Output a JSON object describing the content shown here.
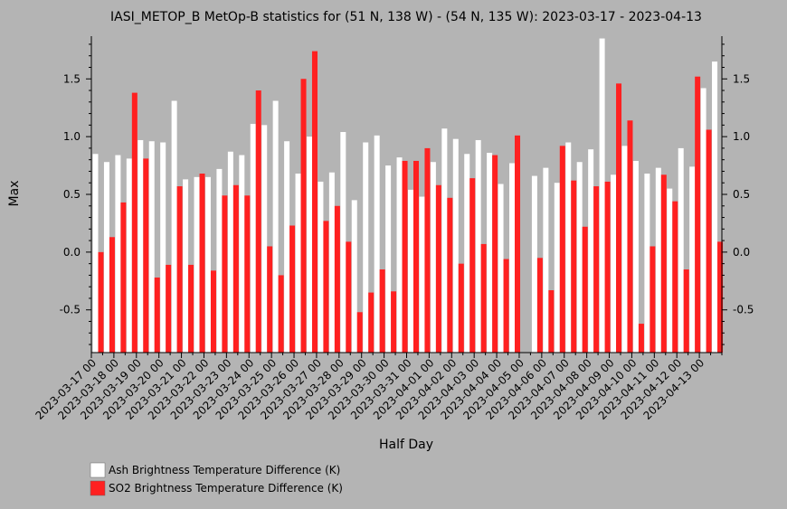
{
  "chart_data": {
    "type": "bar",
    "title": "IASI_METOP_B MetOp-B statistics for (51 N, 138 W) - (54 N, 135 W): 2023-03-17 - 2023-04-13",
    "xlabel": "Half Day",
    "ylabel": "Max",
    "ylim": [
      -0.87,
      1.87
    ],
    "yticks": [
      "1.5",
      "1.0",
      "0.5",
      "0.0",
      "-0.5"
    ],
    "ytick_values": [
      1.5,
      1.0,
      0.5,
      0.0,
      -0.5
    ],
    "xtick_labels": [
      "2023-03-17 00",
      "2023-03-18 00",
      "2023-03-19 00",
      "2023-03-20 00",
      "2023-03-21 00",
      "2023-03-22 00",
      "2023-03-23 00",
      "2023-03-24 00",
      "2023-03-25 00",
      "2023-03-26 00",
      "2023-03-27 00",
      "2023-03-28 00",
      "2023-03-29 00",
      "2023-03-30 00",
      "2023-03-31 00",
      "2023-04-01 00",
      "2023-04-02 00",
      "2023-04-03 00",
      "2023-04-04 00",
      "2023-04-05 00",
      "2023-04-06 00",
      "2023-04-07 00",
      "2023-04-08 00",
      "2023-04-09 00",
      "2023-04-10 00",
      "2023-04-11 00",
      "2023-04-12 00",
      "2023-04-13 00"
    ],
    "grid": false,
    "legend_position": "bottom-left",
    "series": [
      {
        "name": "Ash Brightness Temperature Difference (K)",
        "color": "#ffffff",
        "values": [
          0.85,
          0.78,
          0.84,
          0.81,
          0.97,
          0.96,
          0.95,
          1.31,
          0.63,
          0.65,
          0.65,
          0.72,
          0.87,
          0.84,
          1.11,
          1.1,
          1.31,
          0.96,
          0.68,
          1.0,
          0.61,
          0.69,
          1.04,
          0.45,
          0.95,
          1.01,
          0.75,
          0.82,
          0.54,
          0.48,
          0.78,
          1.07,
          0.98,
          0.85,
          0.97,
          0.86,
          0.59,
          0.77,
          null,
          0.66,
          0.73,
          0.6,
          0.95,
          0.78,
          0.89,
          1.85,
          0.67,
          0.92,
          0.79,
          0.68,
          0.73,
          0.55,
          0.9,
          0.74,
          1.42,
          1.65
        ]
      },
      {
        "name": "SO2 Brightness Temperature Difference (K)",
        "color": "#ff2020",
        "values": [
          0.0,
          0.13,
          0.43,
          1.38,
          0.81,
          -0.22,
          -0.11,
          0.57,
          -0.11,
          0.68,
          -0.16,
          0.49,
          0.58,
          0.49,
          1.4,
          0.05,
          -0.2,
          0.23,
          1.5,
          1.74,
          0.27,
          0.4,
          0.09,
          -0.52,
          -0.35,
          -0.15,
          -0.34,
          0.79,
          0.79,
          0.9,
          0.58,
          0.47,
          -0.1,
          0.64,
          0.07,
          0.84,
          -0.06,
          1.01,
          null,
          -0.05,
          -0.33,
          0.92,
          0.62,
          0.22,
          0.57,
          0.61,
          1.46,
          1.14,
          -0.62,
          0.05,
          0.67,
          0.44,
          -0.15,
          1.52,
          1.06,
          0.09
        ]
      }
    ]
  },
  "legend": {
    "items": [
      {
        "label": "Ash Brightness Temperature Difference (K)",
        "color": "#ffffff"
      },
      {
        "label": "SO2 Brightness Temperature Difference (K)",
        "color": "#ff2020"
      }
    ]
  }
}
